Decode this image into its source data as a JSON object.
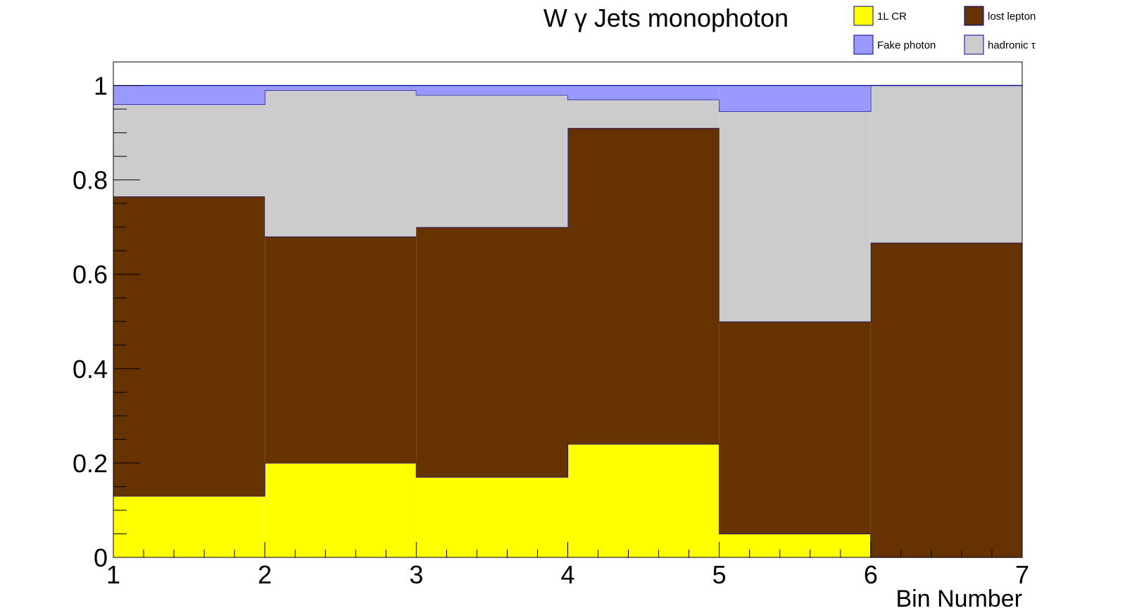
{
  "chart_data": {
    "type": "bar",
    "stacked": true,
    "title": "W γ Jets monophoton",
    "xlabel": "Bin Number",
    "ylabel": "",
    "xlim": [
      1,
      7
    ],
    "ylim": [
      0,
      1.05
    ],
    "grid": false,
    "legend_position": "top-right",
    "bin_edges": [
      1,
      2,
      3,
      4,
      5,
      6,
      7
    ],
    "x_ticks": [
      "1",
      "2",
      "3",
      "4",
      "5",
      "6",
      "7"
    ],
    "y_ticks": [
      {
        "value": 0,
        "label": "0"
      },
      {
        "value": 0.2,
        "label": "0.2"
      },
      {
        "value": 0.4,
        "label": "0.4"
      },
      {
        "value": 0.6,
        "label": "0.6"
      },
      {
        "value": 0.8,
        "label": "0.8"
      },
      {
        "value": 1,
        "label": "1"
      }
    ],
    "series": [
      {
        "name": "1L CR",
        "color": "#ffff00",
        "values": [
          0.13,
          0.2,
          0.17,
          0.24,
          0.05,
          0.0
        ]
      },
      {
        "name": "lost lepton",
        "color": "#663300",
        "values": [
          0.635,
          0.48,
          0.53,
          0.67,
          0.45,
          0.667
        ]
      },
      {
        "name": "hadronic τ",
        "color": "#cccccc",
        "values": [
          0.195,
          0.31,
          0.28,
          0.06,
          0.445,
          0.333
        ]
      },
      {
        "name": "Fake photon",
        "color": "#9999ff",
        "values": [
          0.04,
          0.01,
          0.02,
          0.03,
          0.055,
          0.0
        ]
      }
    ],
    "legend_layout": [
      [
        "1L CR",
        "lost lepton"
      ],
      [
        "Fake photon",
        "hadronic τ"
      ]
    ]
  }
}
